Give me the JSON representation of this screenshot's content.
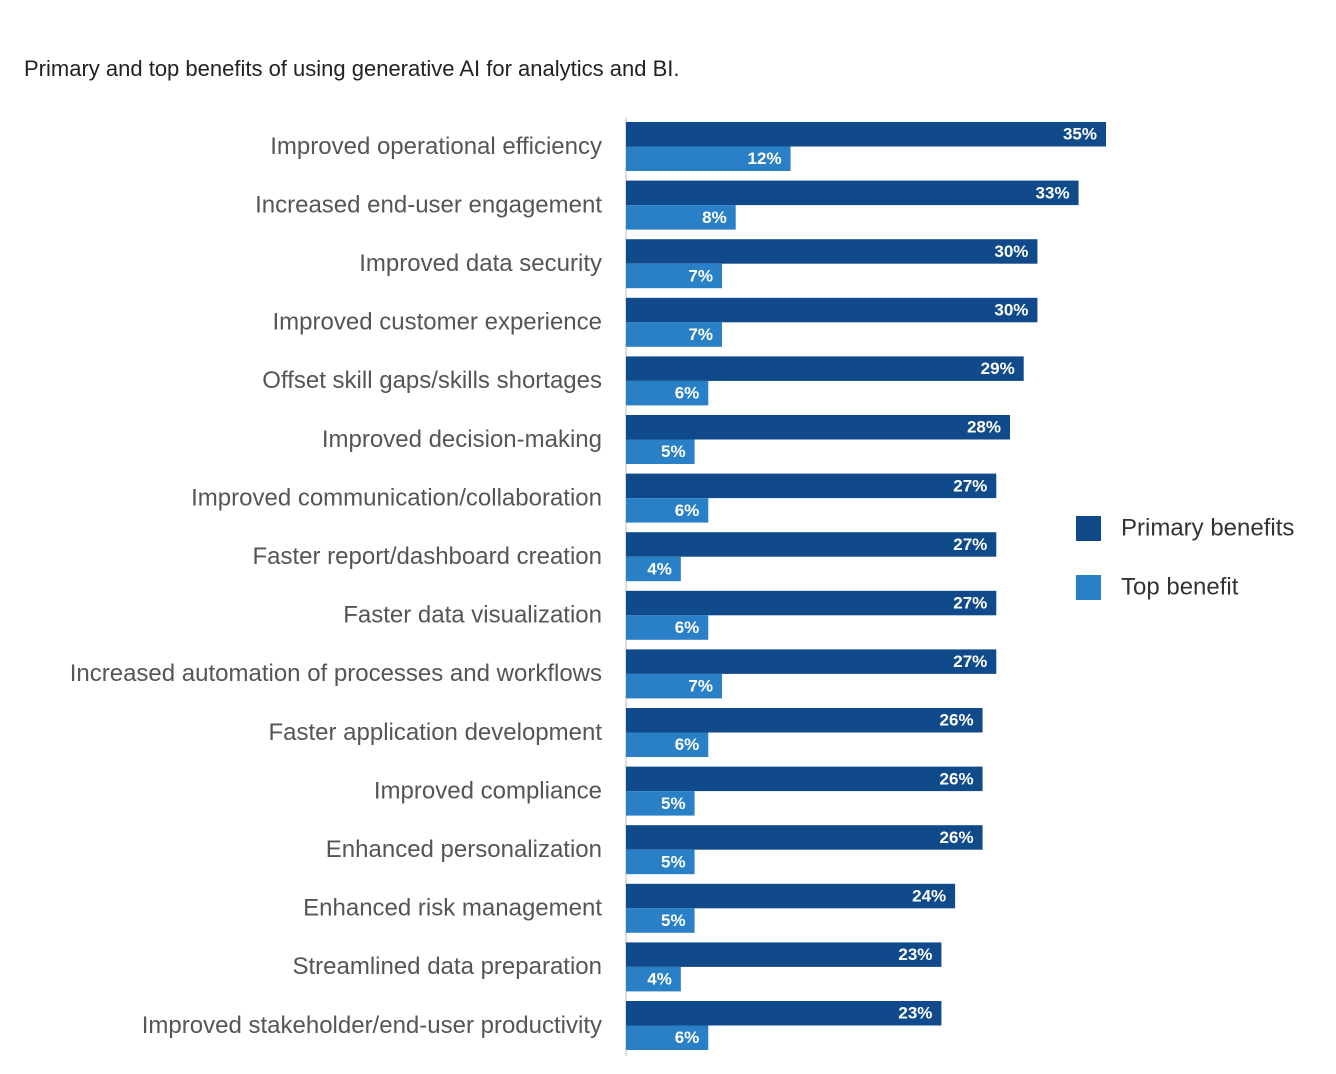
{
  "chart_data": {
    "type": "bar",
    "orientation": "horizontal",
    "title": "Primary and top benefits of using generative AI for analytics and BI.",
    "xlabel": "",
    "ylabel": "",
    "xlim": [
      0,
      35
    ],
    "grid": false,
    "legend_position": "right",
    "categories": [
      "Improved operational efficiency",
      "Increased end-user engagement",
      "Improved data security",
      "Improved customer experience",
      "Offset skill gaps/skills shortages",
      "Improved decision-making",
      "Improved communication/collaboration",
      "Faster report/dashboard creation",
      "Faster data visualization",
      "Increased automation of processes and workflows",
      "Faster application development",
      "Improved compliance",
      "Enhanced personalization",
      "Enhanced risk management",
      "Streamlined data preparation",
      "Improved stakeholder/end-user productivity"
    ],
    "series": [
      {
        "name": "Primary benefits",
        "color": "#114a8b",
        "values": [
          35,
          33,
          30,
          30,
          29,
          28,
          27,
          27,
          27,
          27,
          26,
          26,
          26,
          24,
          23,
          23
        ],
        "labels": [
          "35%",
          "33%",
          "30%",
          "30%",
          "29%",
          "28%",
          "27%",
          "27%",
          "27%",
          "27%",
          "26%",
          "26%",
          "26%",
          "24%",
          "23%",
          "23%"
        ]
      },
      {
        "name": "Top benefit",
        "color": "#2a80c6",
        "values": [
          12,
          8,
          7,
          7,
          6,
          5,
          6,
          4,
          6,
          7,
          6,
          5,
          5,
          5,
          4,
          6
        ],
        "labels": [
          "12%",
          "8%",
          "7%",
          "7%",
          "6%",
          "5%",
          "6%",
          "4%",
          "6%",
          "7%",
          "6%",
          "5%",
          "5%",
          "5%",
          "4%",
          "6%"
        ]
      }
    ],
    "axis_color": "#bbbbbb"
  }
}
